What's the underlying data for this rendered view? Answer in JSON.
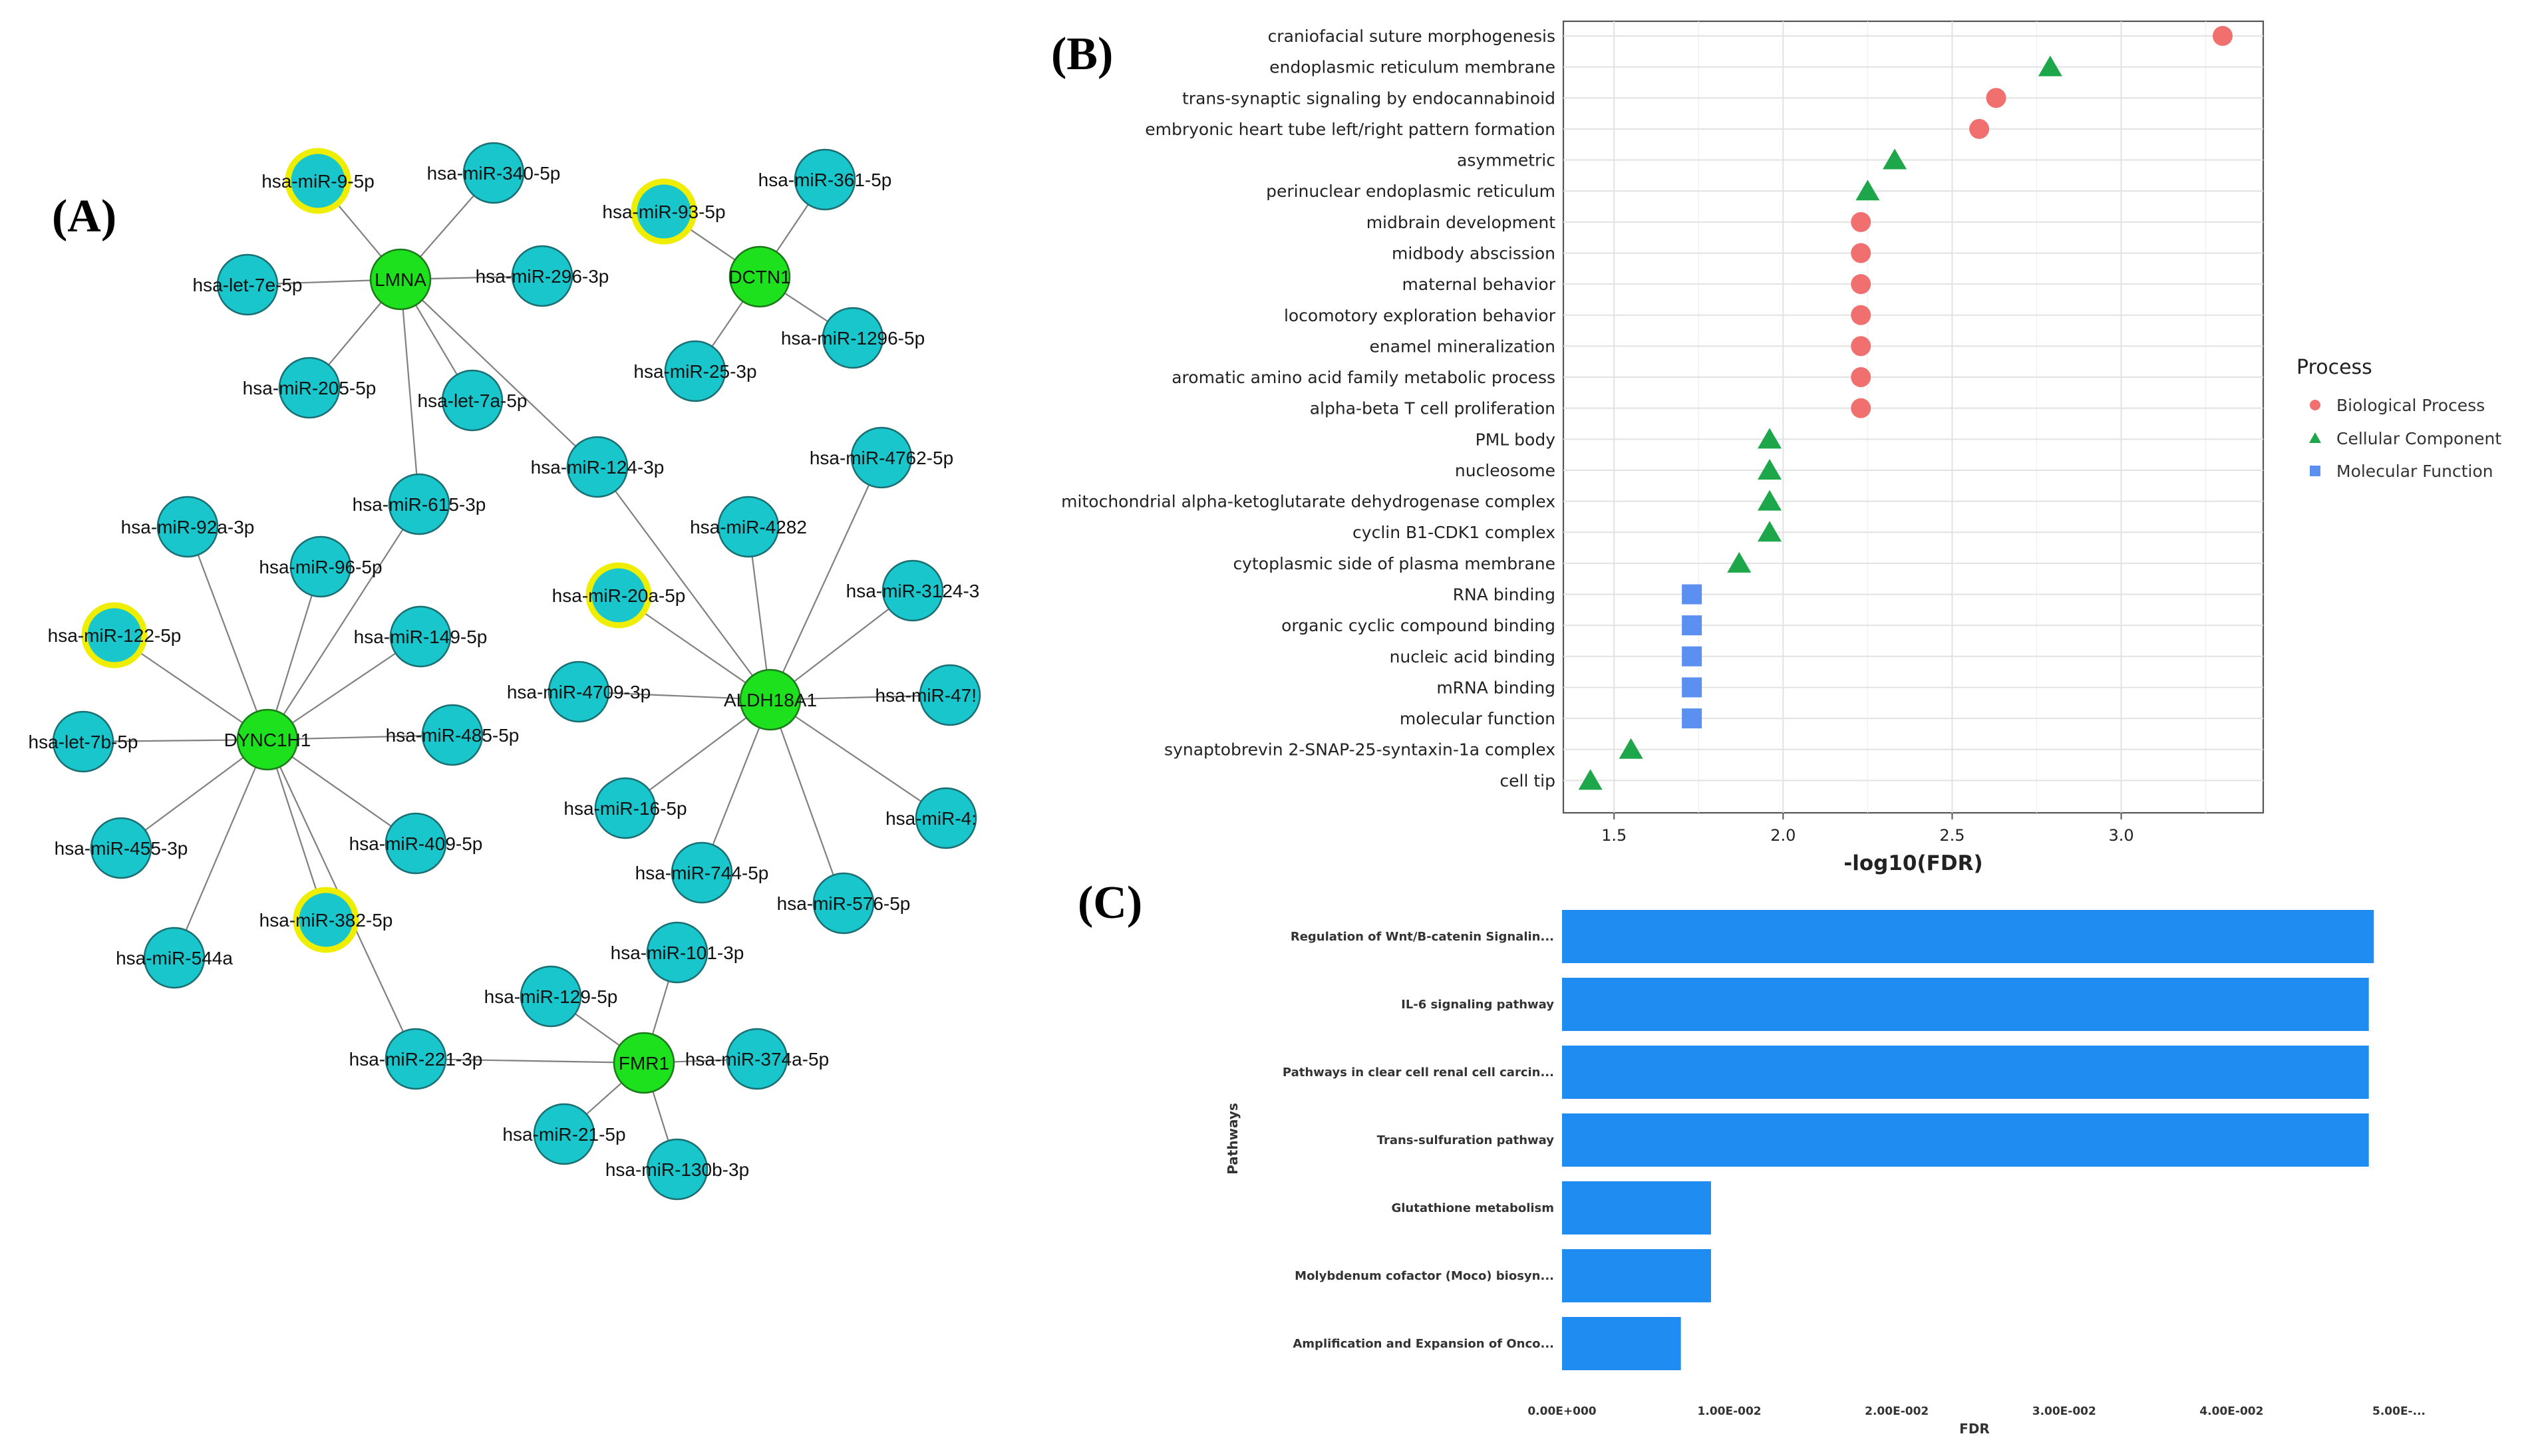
{
  "panels": {
    "a": "(A)",
    "b": "(B)",
    "c": "(C)"
  },
  "network": {
    "genes": [
      {
        "id": "LMNA",
        "label": "LMNA"
      },
      {
        "id": "DCTN1",
        "label": "DCTN1"
      },
      {
        "id": "DYNC1H1",
        "label": "DYNC1H1"
      },
      {
        "id": "ALDH18A1",
        "label": "ALDH18A1"
      },
      {
        "id": "FMR1",
        "label": "FMR1"
      }
    ],
    "mirnas": [
      {
        "id": "m9",
        "label": "hsa-miR-9-5p",
        "highlight": true
      },
      {
        "id": "m340",
        "label": "hsa-miR-340-5p",
        "highlight": false
      },
      {
        "id": "let7e",
        "label": "hsa-let-7e-5p",
        "highlight": false
      },
      {
        "id": "m296",
        "label": "hsa-miR-296-3p",
        "highlight": false
      },
      {
        "id": "m205",
        "label": "hsa-miR-205-5p",
        "highlight": false
      },
      {
        "id": "let7a",
        "label": "hsa-let-7a-5p",
        "highlight": false
      },
      {
        "id": "m93",
        "label": "hsa-miR-93-5p",
        "highlight": true
      },
      {
        "id": "m361",
        "label": "hsa-miR-361-5p",
        "highlight": false
      },
      {
        "id": "m1296",
        "label": "hsa-miR-1296-5p",
        "highlight": false
      },
      {
        "id": "m25",
        "label": "hsa-miR-25-3p",
        "highlight": false
      },
      {
        "id": "m124",
        "label": "hsa-miR-124-3p",
        "highlight": false
      },
      {
        "id": "m615",
        "label": "hsa-miR-615-3p",
        "highlight": false
      },
      {
        "id": "m92a",
        "label": "hsa-miR-92a-3p",
        "highlight": false
      },
      {
        "id": "m96",
        "label": "hsa-miR-96-5p",
        "highlight": false
      },
      {
        "id": "m122",
        "label": "hsa-miR-122-5p",
        "highlight": true
      },
      {
        "id": "m149",
        "label": "hsa-miR-149-5p",
        "highlight": false
      },
      {
        "id": "let7b",
        "label": "hsa-let-7b-5p",
        "highlight": false
      },
      {
        "id": "m485",
        "label": "hsa-miR-485-5p",
        "highlight": false
      },
      {
        "id": "m455",
        "label": "hsa-miR-455-3p",
        "highlight": false
      },
      {
        "id": "m409",
        "label": "hsa-miR-409-5p",
        "highlight": false
      },
      {
        "id": "m382",
        "label": "hsa-miR-382-5p",
        "highlight": true
      },
      {
        "id": "m544a",
        "label": "hsa-miR-544a",
        "highlight": false
      },
      {
        "id": "m4762",
        "label": "hsa-miR-4762-5p",
        "highlight": false
      },
      {
        "id": "m4282",
        "label": "hsa-miR-4282",
        "highlight": false
      },
      {
        "id": "m20a",
        "label": "hsa-miR-20a-5p",
        "highlight": true
      },
      {
        "id": "m3124",
        "label": "hsa-miR-3124-3",
        "highlight": false
      },
      {
        "id": "m4709",
        "label": "hsa-miR-4709-3p",
        "highlight": false
      },
      {
        "id": "m47x",
        "label": "hsa-miR-47!",
        "highlight": false
      },
      {
        "id": "m16",
        "label": "hsa-miR-16-5p",
        "highlight": false
      },
      {
        "id": "m4x",
        "label": "hsa-miR-4:",
        "highlight": false
      },
      {
        "id": "m744",
        "label": "hsa-miR-744-5p",
        "highlight": false
      },
      {
        "id": "m576",
        "label": "hsa-miR-576-5p",
        "highlight": false
      },
      {
        "id": "m101",
        "label": "hsa-miR-101-3p",
        "highlight": false
      },
      {
        "id": "m129",
        "label": "hsa-miR-129-5p",
        "highlight": false
      },
      {
        "id": "m221",
        "label": "hsa-miR-221-3p",
        "highlight": false
      },
      {
        "id": "m374a",
        "label": "hsa-miR-374a-5p",
        "highlight": false
      },
      {
        "id": "m21",
        "label": "hsa-miR-21-5p",
        "highlight": false
      },
      {
        "id": "m130b",
        "label": "hsa-miR-130b-3p",
        "highlight": false
      }
    ],
    "edges": [
      [
        "LMNA",
        "m9"
      ],
      [
        "LMNA",
        "m340"
      ],
      [
        "LMNA",
        "let7e"
      ],
      [
        "LMNA",
        "m296"
      ],
      [
        "LMNA",
        "m205"
      ],
      [
        "LMNA",
        "let7a"
      ],
      [
        "LMNA",
        "m124"
      ],
      [
        "LMNA",
        "m615"
      ],
      [
        "DCTN1",
        "m93"
      ],
      [
        "DCTN1",
        "m361"
      ],
      [
        "DCTN1",
        "m1296"
      ],
      [
        "DCTN1",
        "m25"
      ],
      [
        "DYNC1H1",
        "m615"
      ],
      [
        "DYNC1H1",
        "m92a"
      ],
      [
        "DYNC1H1",
        "m96"
      ],
      [
        "DYNC1H1",
        "m122"
      ],
      [
        "DYNC1H1",
        "m149"
      ],
      [
        "DYNC1H1",
        "let7b"
      ],
      [
        "DYNC1H1",
        "m485"
      ],
      [
        "DYNC1H1",
        "m455"
      ],
      [
        "DYNC1H1",
        "m409"
      ],
      [
        "DYNC1H1",
        "m382"
      ],
      [
        "DYNC1H1",
        "m544a"
      ],
      [
        "DYNC1H1",
        "m221"
      ],
      [
        "ALDH18A1",
        "m124"
      ],
      [
        "ALDH18A1",
        "m4762"
      ],
      [
        "ALDH18A1",
        "m4282"
      ],
      [
        "ALDH18A1",
        "m20a"
      ],
      [
        "ALDH18A1",
        "m3124"
      ],
      [
        "ALDH18A1",
        "m4709"
      ],
      [
        "ALDH18A1",
        "m47x"
      ],
      [
        "ALDH18A1",
        "m16"
      ],
      [
        "ALDH18A1",
        "m4x"
      ],
      [
        "ALDH18A1",
        "m744"
      ],
      [
        "ALDH18A1",
        "m576"
      ],
      [
        "FMR1",
        "m101"
      ],
      [
        "FMR1",
        "m129"
      ],
      [
        "FMR1",
        "m221"
      ],
      [
        "FMR1",
        "m374a"
      ],
      [
        "FMR1",
        "m21"
      ],
      [
        "FMR1",
        "m130b"
      ]
    ]
  },
  "chart_data": [
    {
      "type": "scatter",
      "panel": "B",
      "xlabel": "-log10(FDR)",
      "xlim": [
        1.35,
        3.42
      ],
      "xticks": [
        "1.5",
        "2.0",
        "2.5",
        "3.0"
      ],
      "xtick_values": [
        1.5,
        2.0,
        2.5,
        3.0
      ],
      "legend_title": "Process",
      "legend": [
        {
          "name": "Biological Process",
          "color": "#f07070",
          "shape": "circle"
        },
        {
          "name": "Cellular Component",
          "color": "#1ea64a",
          "shape": "triangle"
        },
        {
          "name": "Molecular Function",
          "color": "#5b8ff0",
          "shape": "square"
        }
      ],
      "points": [
        {
          "term": "craniofacial suture morphogenesis",
          "x": 3.3,
          "group": 0
        },
        {
          "term": "endoplasmic reticulum membrane",
          "x": 2.79,
          "group": 1
        },
        {
          "term": "trans-synaptic signaling by endocannabinoid",
          "x": 2.63,
          "group": 0
        },
        {
          "term": "embryonic heart tube left/right pattern formation",
          "x": 2.58,
          "group": 0
        },
        {
          "term": "asymmetric",
          "x": 2.33,
          "group": 1
        },
        {
          "term": "perinuclear endoplasmic reticulum",
          "x": 2.25,
          "group": 1
        },
        {
          "term": "midbrain development",
          "x": 2.23,
          "group": 0
        },
        {
          "term": "midbody abscission",
          "x": 2.23,
          "group": 0
        },
        {
          "term": "maternal behavior",
          "x": 2.23,
          "group": 0
        },
        {
          "term": "locomotory exploration behavior",
          "x": 2.23,
          "group": 0
        },
        {
          "term": "enamel mineralization",
          "x": 2.23,
          "group": 0
        },
        {
          "term": "aromatic amino acid family metabolic process",
          "x": 2.23,
          "group": 0
        },
        {
          "term": "alpha-beta T cell proliferation",
          "x": 2.23,
          "group": 0
        },
        {
          "term": "PML body",
          "x": 1.96,
          "group": 1
        },
        {
          "term": "nucleosome",
          "x": 1.96,
          "group": 1
        },
        {
          "term": "mitochondrial alpha-ketoglutarate dehydrogenase complex",
          "x": 1.96,
          "group": 1
        },
        {
          "term": "cyclin B1-CDK1 complex",
          "x": 1.96,
          "group": 1
        },
        {
          "term": "cytoplasmic side of plasma membrane",
          "x": 1.87,
          "group": 1
        },
        {
          "term": "RNA binding",
          "x": 1.73,
          "group": 2
        },
        {
          "term": "organic cyclic compound binding",
          "x": 1.73,
          "group": 2
        },
        {
          "term": "nucleic acid binding",
          "x": 1.73,
          "group": 2
        },
        {
          "term": "mRNA binding",
          "x": 1.73,
          "group": 2
        },
        {
          "term": "molecular function",
          "x": 1.73,
          "group": 2
        },
        {
          "term": "synaptobrevin 2-SNAP-25-syntaxin-1a complex",
          "x": 1.55,
          "group": 1
        },
        {
          "term": "cell tip",
          "x": 1.43,
          "group": 1
        }
      ]
    },
    {
      "type": "bar",
      "orientation": "horizontal",
      "panel": "C",
      "xlabel": "FDR",
      "ylabel": "Pathways",
      "xlim": [
        0,
        0.05
      ],
      "xticks": [
        "0.00E+000",
        "1.00E-002",
        "2.00E-002",
        "3.00E-002",
        "4.00E-002",
        "5.00E-..."
      ],
      "xtick_values": [
        0,
        0.01,
        0.02,
        0.03,
        0.04,
        0.05
      ],
      "color": "#1e8cf0",
      "categories": [
        "Regulation of Wnt/B-catenin Signalin...",
        "IL-6 signaling pathway",
        "Pathways in clear cell renal cell carcin...",
        "Trans-sulfuration pathway",
        "Glutathione metabolism",
        "Molybdenum cofactor (Moco) biosyn...",
        "Amplification and Expansion of Onco..."
      ],
      "values": [
        0.0485,
        0.0482,
        0.0482,
        0.0482,
        0.0089,
        0.0089,
        0.0071
      ]
    }
  ]
}
